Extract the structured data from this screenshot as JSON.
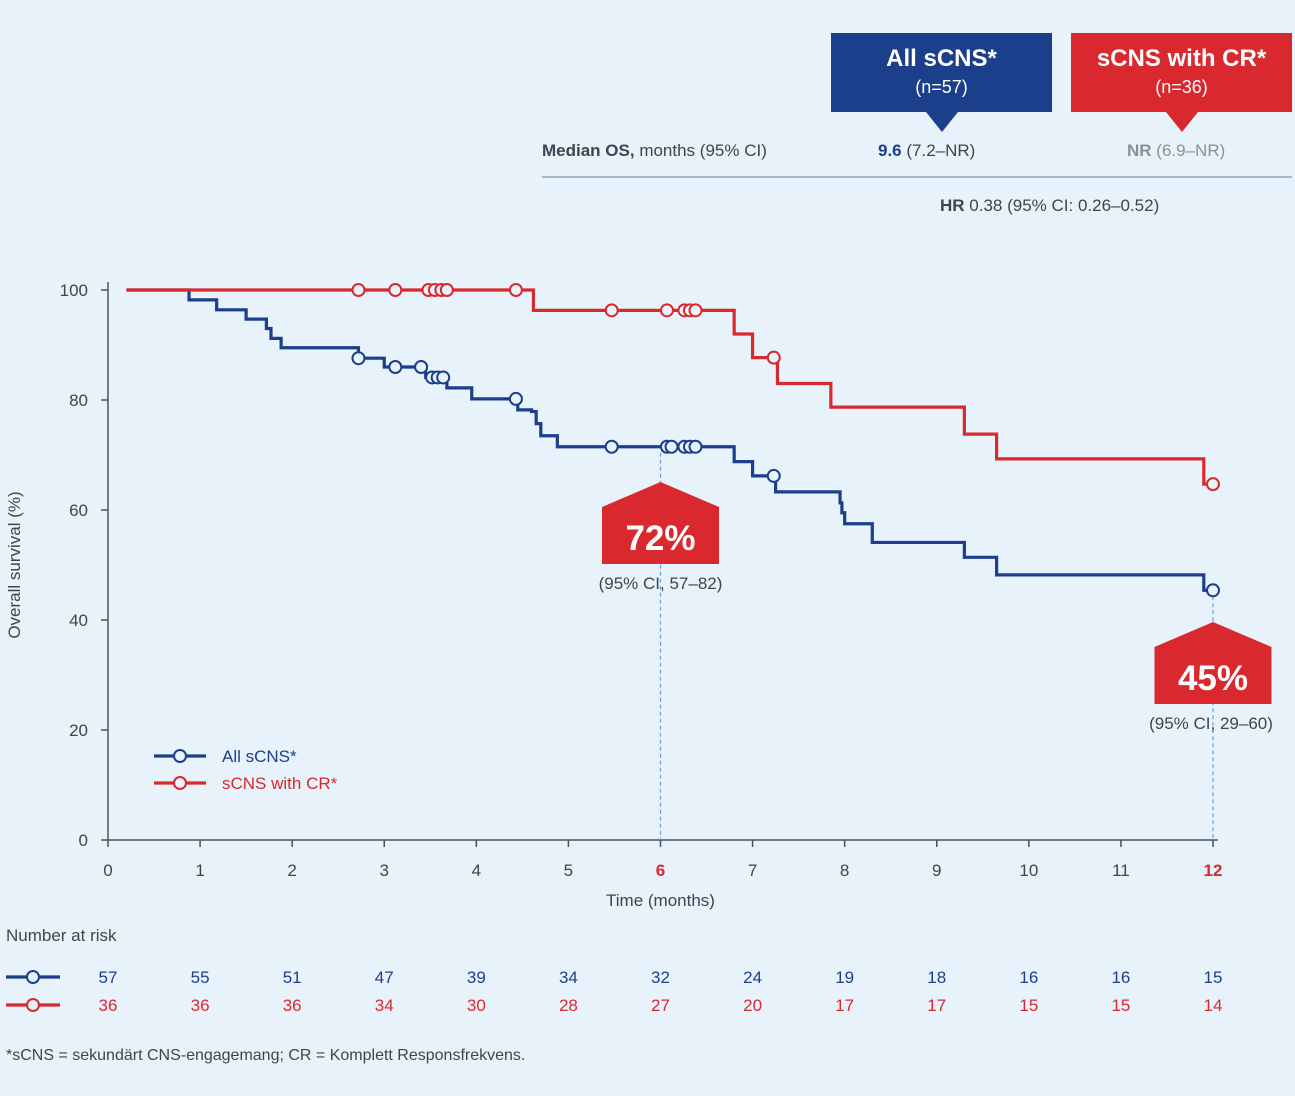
{
  "header": {
    "box_all": {
      "title": "All sCNS*",
      "n": "(n=57)",
      "color": "#1c3f8c"
    },
    "box_cr": {
      "title": "sCNS with CR*",
      "n": "(n=36)",
      "color": "#d9292f"
    },
    "median_label_bold": "Median OS,",
    "median_label_rest": "months (95% CI)",
    "median_all_bold": "9.6",
    "median_all_rest": "(7.2–NR)",
    "median_cr_bold": "NR",
    "median_cr_rest": "(6.9–NR)",
    "hr_bold": "HR",
    "hr_rest": "0.38 (95% CI: 0.26–0.52)"
  },
  "chart_data": {
    "type": "line",
    "xlabel": "Time (months)",
    "ylabel": "Overall survival (%)",
    "xlim": [
      0,
      12
    ],
    "ylim": [
      0,
      100
    ],
    "xticks": [
      0,
      1,
      2,
      3,
      4,
      5,
      6,
      7,
      8,
      9,
      10,
      11,
      12
    ],
    "yticks": [
      0,
      20,
      40,
      60,
      80,
      100
    ],
    "highlight_ticks": [
      6,
      12
    ],
    "grid": false,
    "legend_position": "bottom-left",
    "series": [
      {
        "name": "All sCNS*",
        "color": "#1c3f8c",
        "steps": [
          [
            0.2,
            100
          ],
          [
            0.88,
            98.2
          ],
          [
            1.18,
            96.4
          ],
          [
            1.5,
            94.7
          ],
          [
            1.72,
            93
          ],
          [
            1.77,
            91.2
          ],
          [
            1.88,
            89.5
          ],
          [
            2.45,
            89.5
          ],
          [
            2.72,
            87.6
          ],
          [
            3.0,
            86.0
          ],
          [
            3.45,
            84.1
          ],
          [
            3.68,
            82.2
          ],
          [
            3.95,
            80.2
          ],
          [
            4.45,
            78.2
          ],
          [
            4.6,
            77.9
          ],
          [
            4.65,
            75.7
          ],
          [
            4.7,
            73.5
          ],
          [
            4.88,
            71.5
          ],
          [
            6.8,
            68.8
          ],
          [
            7.0,
            66.2
          ],
          [
            7.25,
            63.3
          ],
          [
            7.95,
            61.3
          ],
          [
            7.97,
            59.5
          ],
          [
            8.0,
            57.5
          ],
          [
            8.3,
            54.1
          ],
          [
            9.3,
            51.4
          ],
          [
            9.65,
            48.2
          ],
          [
            11.9,
            45.4
          ],
          [
            12.0,
            45.4
          ]
        ],
        "censor_x": [
          2.72,
          3.12,
          3.4,
          3.52,
          3.58,
          3.64,
          4.43,
          5.47,
          6.07,
          6.12,
          6.26,
          6.32,
          6.38,
          7.23,
          12.0
        ]
      },
      {
        "name": "sCNS with CR*",
        "color": "#d9292f",
        "steps": [
          [
            0.2,
            100
          ],
          [
            4.62,
            96.3
          ],
          [
            6.8,
            92.0
          ],
          [
            7.0,
            87.7
          ],
          [
            7.27,
            83.0
          ],
          [
            7.85,
            78.7
          ],
          [
            9.3,
            73.8
          ],
          [
            9.65,
            69.3
          ],
          [
            11.9,
            64.7
          ],
          [
            12.0,
            64.7
          ]
        ],
        "censor_x": [
          2.72,
          3.12,
          3.48,
          3.55,
          3.62,
          3.68,
          4.43,
          5.47,
          6.07,
          6.26,
          6.32,
          6.38,
          7.23,
          12.0
        ]
      }
    ],
    "annotations": [
      {
        "x": 6,
        "value": "72%",
        "ci": "(95% CI, 57–82)"
      },
      {
        "x": 12,
        "value": "45%",
        "ci": "(95% CI, 29–60)"
      }
    ],
    "number_at_risk": {
      "title": "Number at risk",
      "times": [
        0,
        1,
        2,
        3,
        4,
        5,
        6,
        7,
        8,
        9,
        10,
        11,
        12
      ],
      "all": [
        "57",
        "55",
        "51",
        "47",
        "39",
        "34",
        "32",
        "24",
        "19",
        "18",
        "16",
        "16",
        "15"
      ],
      "cr": [
        "36",
        "36",
        "36",
        "34",
        "30",
        "28",
        "27",
        "20",
        "17",
        "17",
        "15",
        "15",
        "14"
      ]
    }
  },
  "footnote": "*sCNS = sekundärt CNS-engagemang; CR = Komplett Responsfrekvens."
}
